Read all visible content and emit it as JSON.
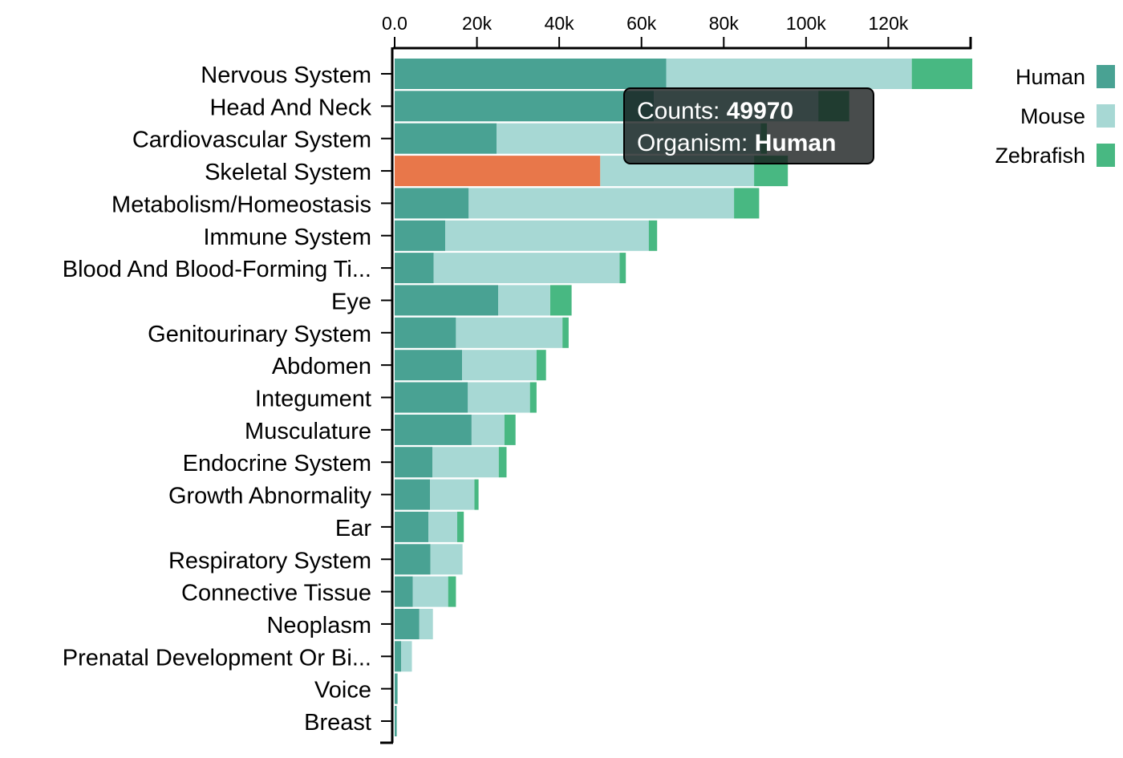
{
  "chart_data": {
    "type": "bar",
    "orientation": "horizontal",
    "stacked": true,
    "categories": [
      "Nervous System",
      "Head And Neck",
      "Cardiovascular System",
      "Skeletal System",
      "Metabolism/Homeostasis",
      "Immune System",
      "Blood And Blood-Forming Ti...",
      "Eye",
      "Genitourinary System",
      "Abdomen",
      "Integument",
      "Musculature",
      "Endocrine System",
      "Growth Abnormality",
      "Ear",
      "Respiratory System",
      "Connective Tissue",
      "Neoplasm",
      "Prenatal Development Or Bi...",
      "Voice",
      "Breast"
    ],
    "series": [
      {
        "name": "Human",
        "color": "#49a293",
        "values": [
          66000,
          63000,
          24800,
          49970,
          18000,
          12300,
          9500,
          25200,
          14900,
          16400,
          17800,
          18700,
          9200,
          8600,
          8200,
          8700,
          4400,
          6000,
          1600,
          700,
          500
        ]
      },
      {
        "name": "Mouse",
        "color": "#a7d8d4",
        "values": [
          59700,
          40000,
          64200,
          37400,
          64500,
          49500,
          45200,
          12600,
          25900,
          18100,
          15100,
          8000,
          16100,
          10800,
          7000,
          7800,
          8600,
          3300,
          2600,
          0,
          0
        ]
      },
      {
        "name": "Zebrafish",
        "color": "#48b882",
        "values": [
          14700,
          7500,
          1500,
          8200,
          6100,
          2000,
          1500,
          5200,
          1500,
          2300,
          1600,
          2700,
          1900,
          1000,
          1600,
          0,
          1900,
          0,
          0,
          0,
          0
        ]
      }
    ],
    "xlim": [
      0,
      140000
    ],
    "xticks": [
      {
        "value": 0,
        "label": "0.0"
      },
      {
        "value": 20000,
        "label": "20k"
      },
      {
        "value": 40000,
        "label": "40k"
      },
      {
        "value": 60000,
        "label": "60k"
      },
      {
        "value": 80000,
        "label": "80k"
      },
      {
        "value": 100000,
        "label": "100k"
      },
      {
        "value": 120000,
        "label": "120k"
      }
    ],
    "xaxis_position": "top",
    "grid": false,
    "legend": {
      "placement": "top-right",
      "entries": [
        "Human",
        "Mouse",
        "Zebrafish"
      ]
    },
    "highlight": {
      "category": "Skeletal System",
      "series": "Human",
      "color": "#e8774a"
    },
    "tooltip": {
      "counts_label": "Counts:",
      "counts_value": "49970",
      "organism_label": "Organism:",
      "organism_value": "Human"
    }
  }
}
